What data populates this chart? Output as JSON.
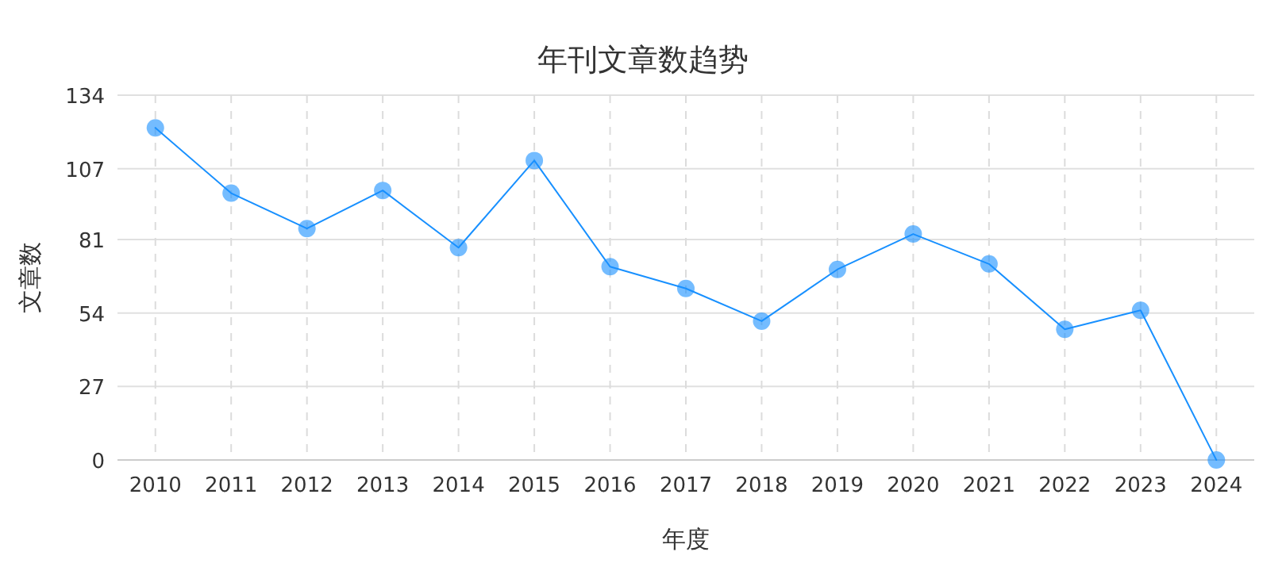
{
  "chart_data": {
    "type": "line",
    "title": "年刊文章数趋势",
    "xlabel": "年度",
    "ylabel": "文章数",
    "categories": [
      "2010",
      "2011",
      "2012",
      "2013",
      "2014",
      "2015",
      "2016",
      "2017",
      "2018",
      "2019",
      "2020",
      "2021",
      "2022",
      "2023",
      "2024"
    ],
    "series": [
      {
        "color": "#1890ff",
        "values": [
          122,
          98,
          85,
          99,
          78,
          110,
          71,
          63,
          51,
          70,
          83,
          72,
          48,
          55,
          0
        ]
      }
    ],
    "ylim": [
      0,
      134
    ],
    "yticks": [
      0,
      27,
      54,
      81,
      107,
      134
    ],
    "grid": true,
    "marker": "circle",
    "line_style": "solid"
  }
}
